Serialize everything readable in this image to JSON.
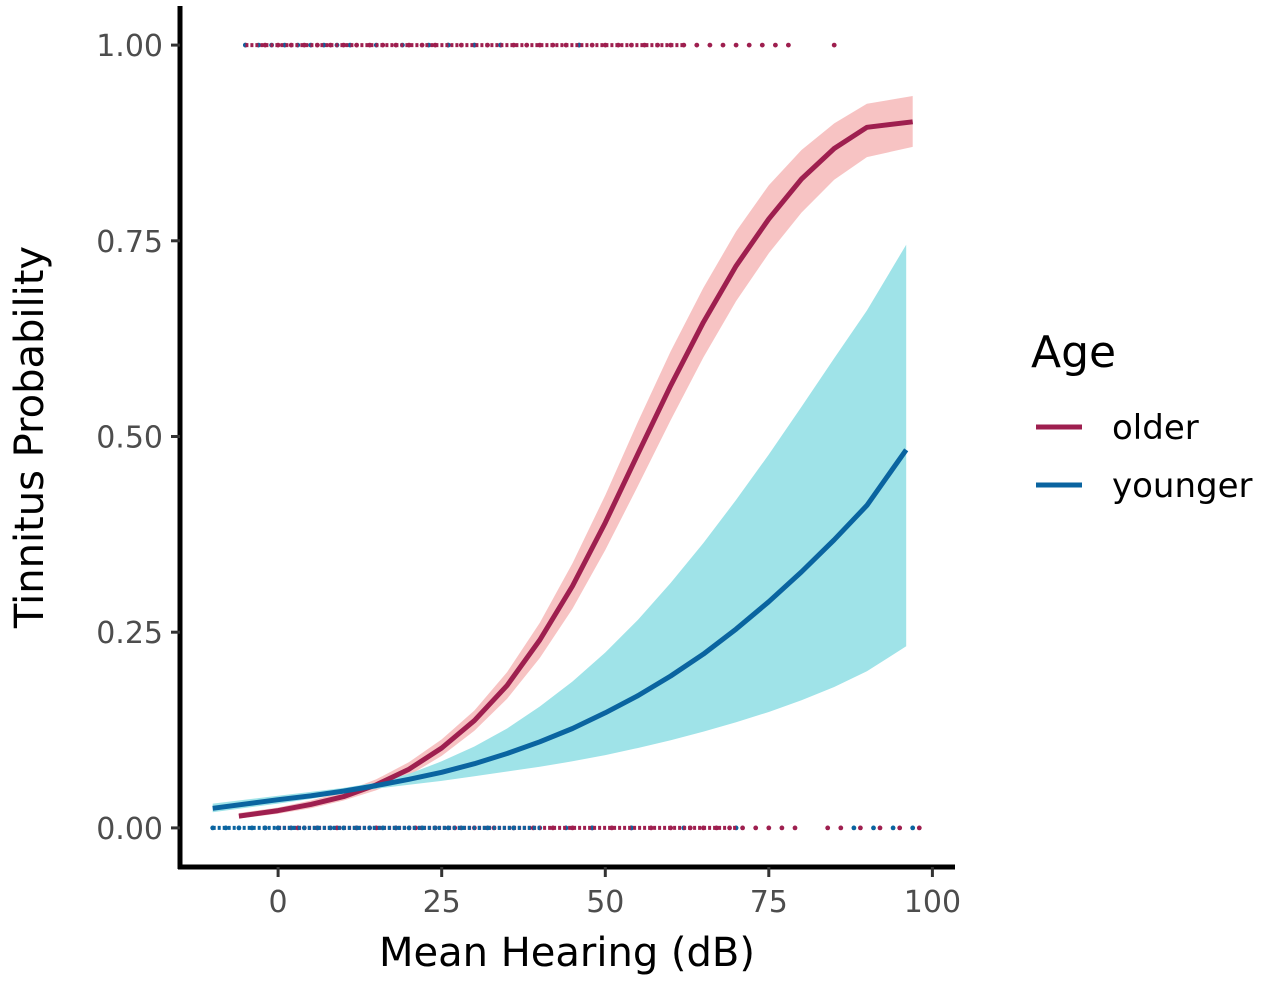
{
  "chart_data": {
    "type": "line",
    "xlabel": "Mean Hearing (dB)",
    "ylabel": "Tinnitus Probability",
    "xlim": [
      -15,
      103
    ],
    "ylim": [
      -0.05,
      1.05
    ],
    "x_ticks": [
      0,
      25,
      50,
      75,
      100
    ],
    "x_tick_labels": [
      "0",
      "25",
      "50",
      "75",
      "100"
    ],
    "y_ticks": [
      0,
      0.25,
      0.5,
      0.75,
      1.0
    ],
    "y_tick_labels": [
      "0.00",
      "0.25",
      "0.50",
      "0.75",
      "1.00"
    ],
    "grid": false,
    "legend": {
      "title": "Age",
      "placement": "right",
      "entries": [
        "older",
        "younger"
      ]
    },
    "series": [
      {
        "name": "older",
        "color": "#9e1f4f",
        "band_color": "#f7c3c3",
        "x": [
          -6,
          0,
          5,
          10,
          15,
          20,
          25,
          30,
          35,
          40,
          45,
          50,
          55,
          60,
          65,
          70,
          75,
          80,
          85,
          90,
          97
        ],
        "y": [
          0.015,
          0.022,
          0.03,
          0.04,
          0.055,
          0.075,
          0.102,
          0.137,
          0.182,
          0.24,
          0.309,
          0.39,
          0.478,
          0.565,
          0.646,
          0.718,
          0.778,
          0.829,
          0.868,
          0.895,
          0.902
        ],
        "lower": [
          0.012,
          0.018,
          0.025,
          0.035,
          0.048,
          0.067,
          0.092,
          0.124,
          0.165,
          0.217,
          0.28,
          0.355,
          0.437,
          0.521,
          0.601,
          0.673,
          0.734,
          0.786,
          0.828,
          0.857,
          0.87
        ],
        "upper": [
          0.019,
          0.026,
          0.035,
          0.046,
          0.062,
          0.084,
          0.113,
          0.15,
          0.199,
          0.262,
          0.338,
          0.425,
          0.519,
          0.609,
          0.69,
          0.762,
          0.821,
          0.866,
          0.9,
          0.925,
          0.935
        ]
      },
      {
        "name": "younger",
        "color": "#0a64a0",
        "band_color": "#9fe3e8",
        "x": [
          -10,
          0,
          5,
          10,
          15,
          20,
          25,
          30,
          35,
          40,
          45,
          50,
          55,
          60,
          65,
          70,
          75,
          80,
          85,
          90,
          96
        ],
        "y": [
          0.025,
          0.036,
          0.041,
          0.047,
          0.054,
          0.062,
          0.071,
          0.082,
          0.095,
          0.11,
          0.127,
          0.147,
          0.169,
          0.194,
          0.222,
          0.254,
          0.289,
          0.327,
          0.368,
          0.412,
          0.483
        ],
        "lower": [
          0.02,
          0.031,
          0.037,
          0.044,
          0.05,
          0.055,
          0.06,
          0.066,
          0.072,
          0.078,
          0.085,
          0.093,
          0.102,
          0.112,
          0.123,
          0.135,
          0.148,
          0.163,
          0.18,
          0.2,
          0.232
        ],
        "upper": [
          0.031,
          0.041,
          0.046,
          0.051,
          0.058,
          0.069,
          0.085,
          0.104,
          0.127,
          0.155,
          0.187,
          0.224,
          0.266,
          0.313,
          0.364,
          0.419,
          0.477,
          0.538,
          0.6,
          0.661,
          0.745
        ]
      }
    ],
    "rug": {
      "older_at_1": [
        -5,
        -2,
        0,
        2,
        4,
        6,
        8,
        10,
        12,
        14,
        16,
        18,
        20,
        22,
        24,
        26,
        28,
        30,
        32,
        34,
        36,
        38,
        40,
        42,
        44,
        46,
        48,
        50,
        52,
        54,
        56,
        58,
        60,
        62,
        64,
        66,
        68,
        70,
        72,
        74,
        76,
        78,
        85
      ],
      "younger_at_1": [
        -5,
        -3,
        -1,
        1,
        3,
        5,
        7,
        9,
        11,
        15,
        19,
        23,
        26,
        30,
        34,
        46
      ],
      "older_at_0": [
        -2,
        0,
        3,
        6,
        9,
        12,
        15,
        18,
        21,
        24,
        27,
        30,
        33,
        36,
        39,
        42,
        45,
        48,
        51,
        54,
        57,
        60,
        63,
        65,
        67,
        69,
        71,
        73,
        75,
        77,
        79,
        84,
        86,
        89,
        92,
        95,
        98
      ],
      "younger_at_0": [
        -10,
        -8,
        -6,
        -4,
        -2,
        0,
        2,
        4,
        6,
        8,
        10,
        12,
        14,
        16,
        18,
        20,
        22,
        24,
        26,
        28,
        32,
        36,
        40,
        44,
        48,
        54,
        62,
        70,
        88,
        91,
        94,
        97
      ]
    }
  }
}
